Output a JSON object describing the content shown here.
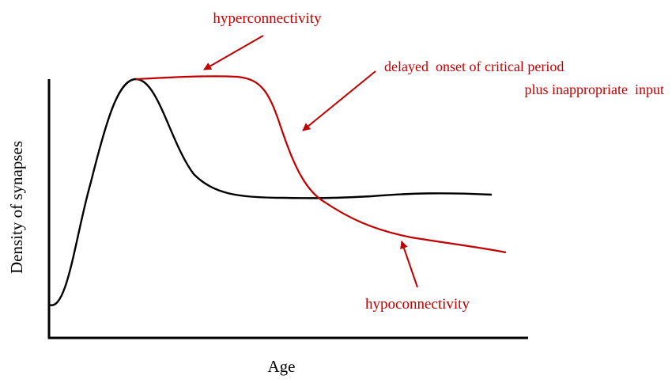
{
  "axes": {
    "x_label": "Age",
    "y_label": "Density of synapses"
  },
  "annotations": {
    "hyper": "hyperconnectivity",
    "delayed_line1": "delayed  onset of critical period",
    "delayed_line2": "plus inappropriate  input",
    "hypo": "hypoconnectivity"
  },
  "colors": {
    "axis": "#000000",
    "normal_curve": "#000000",
    "altered_curve": "#c00000",
    "annotation_text": "#c00000"
  }
}
